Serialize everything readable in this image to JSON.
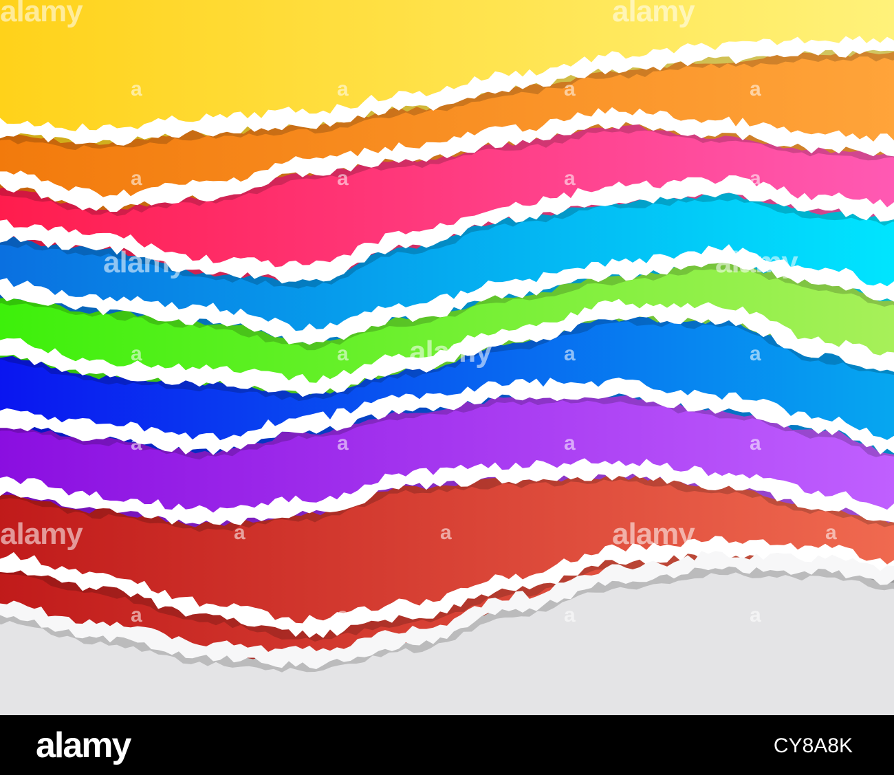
{
  "watermark": {
    "text": "alamy",
    "mark": "a"
  },
  "footer": {
    "logo": "alamy",
    "image_code": "CY8A8K"
  },
  "strips": [
    {
      "name": "yellow",
      "from": "#ffd21a",
      "to": "#fff27a"
    },
    {
      "name": "orange",
      "from": "#f27a0c",
      "to": "#ffa43a"
    },
    {
      "name": "pink",
      "from": "#ff1c4c",
      "to": "#ff5ab4"
    },
    {
      "name": "cyan-blue",
      "from": "#0a6fe0",
      "to": "#00e6ff"
    },
    {
      "name": "green",
      "from": "#3cf00a",
      "to": "#a8f05a"
    },
    {
      "name": "blue",
      "from": "#0a14f0",
      "to": "#06a8f0"
    },
    {
      "name": "purple",
      "from": "#8a0ee0",
      "to": "#c060ff"
    },
    {
      "name": "red",
      "from": "#c01a1a",
      "to": "#f06a50"
    }
  ],
  "colors": {
    "background_bottom": "#e4e4e6",
    "tear_edge": "#ffffff",
    "footer": "#000000"
  }
}
